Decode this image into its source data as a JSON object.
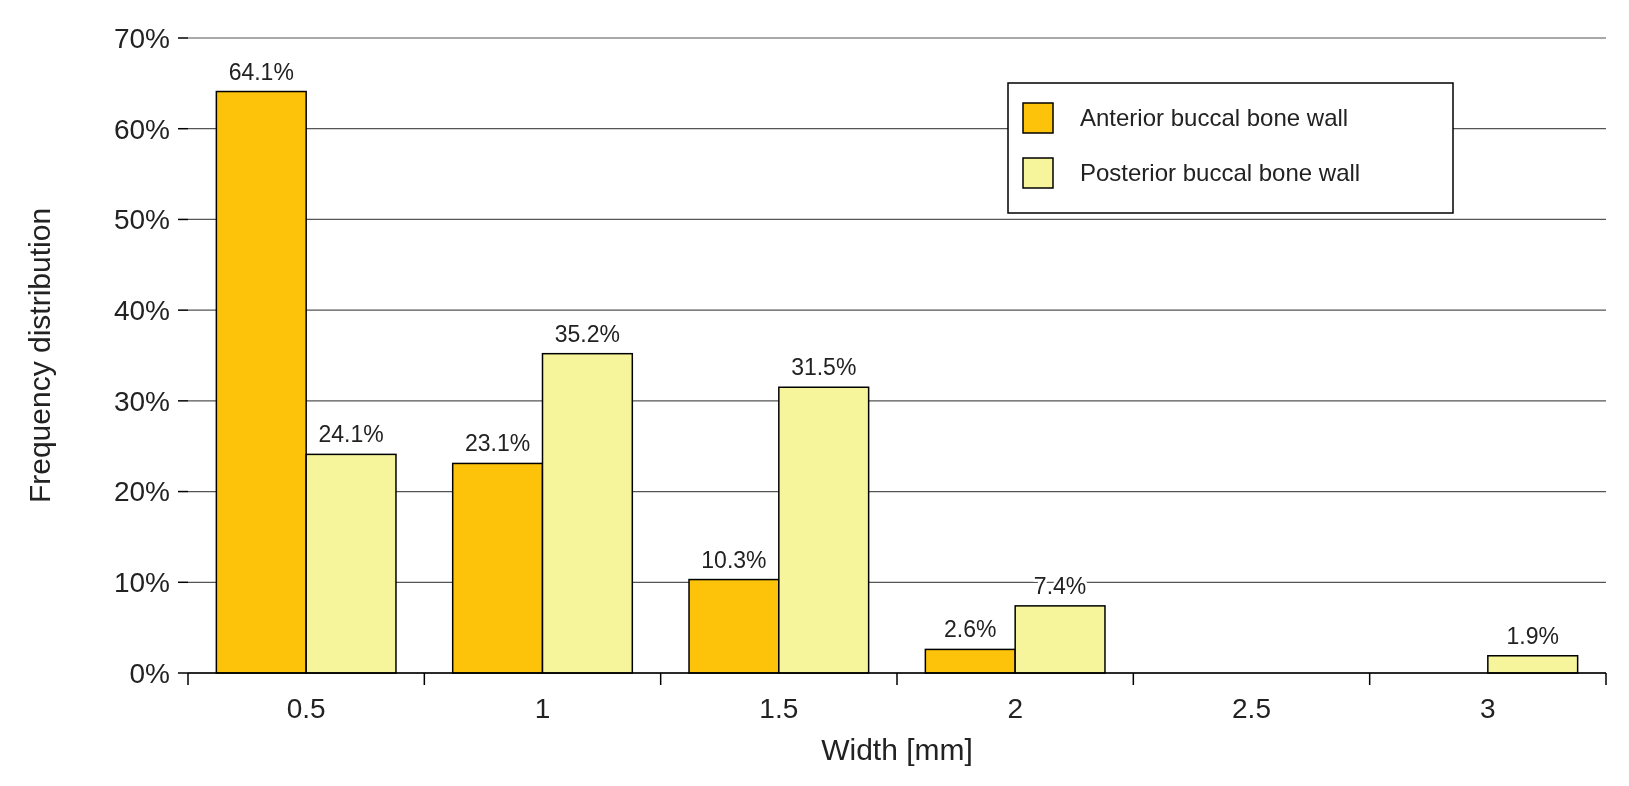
{
  "chart_data": {
    "type": "bar",
    "xlabel": "Width [mm]",
    "ylabel": "Frequency distribution",
    "categories": [
      "0.5",
      "1",
      "1.5",
      "2",
      "2.5",
      "3"
    ],
    "series": [
      {
        "name": "Anterior buccal bone wall",
        "color": "#fcc30a",
        "values": [
          64.1,
          23.1,
          10.3,
          2.6,
          null,
          null
        ],
        "value_labels": [
          "64.1%",
          "23.1%",
          "10.3%",
          "2.6%",
          null,
          null
        ]
      },
      {
        "name": "Posterior buccal bone wall",
        "color": "#f7f59c",
        "values": [
          24.1,
          35.2,
          31.5,
          7.4,
          null,
          1.9
        ],
        "value_labels": [
          "24.1%",
          "35.2%",
          "31.5%",
          "7.4%",
          null,
          "1.9%"
        ]
      }
    ],
    "ylim": [
      0,
      70
    ],
    "yticks": [
      {
        "value": 0,
        "label": "0%"
      },
      {
        "value": 10,
        "label": "10%"
      },
      {
        "value": 20,
        "label": "20%"
      },
      {
        "value": 30,
        "label": "30%"
      },
      {
        "value": 40,
        "label": "40%"
      },
      {
        "value": 50,
        "label": "50%"
      },
      {
        "value": 60,
        "label": "60%"
      },
      {
        "value": 70,
        "label": "70%"
      }
    ],
    "grid": "y",
    "legend": "top right"
  }
}
